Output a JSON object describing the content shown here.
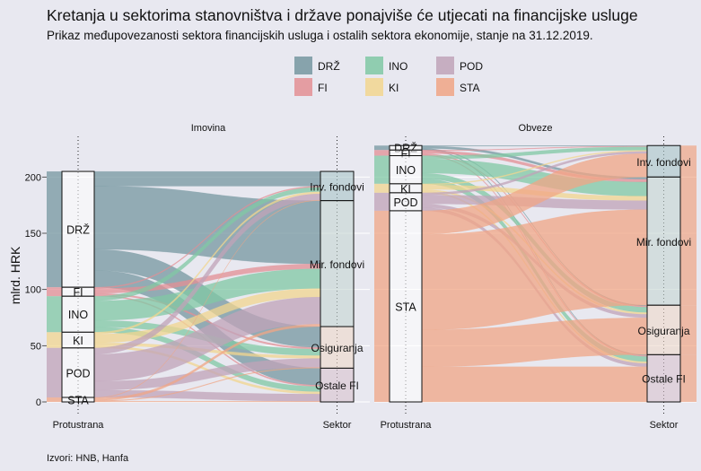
{
  "title": "Kretanja u sektorima stanovništva i države ponajviše će utjecati na financijske usluge",
  "subtitle": "Prikaz međupovezanosti sektora financijskih usluga i ostalih sektora ekonomije, stanje na 31.12.2019.",
  "source": "Izvori: HNB, Hanfa",
  "colors": {
    "DRŽ": "#7597a0",
    "FI": "#e38f94",
    "INO": "#80c8a4",
    "KI": "#f2d68f",
    "POD": "#c0a3b8",
    "STA": "#f0a585"
  },
  "chart_data": {
    "type": "alluvial",
    "ylabel": "mlrd. HRK",
    "ylim": [
      0,
      225
    ],
    "yticks": [
      0,
      50,
      100,
      150,
      200
    ],
    "legend": {
      "position": "top",
      "items": [
        "DRŽ",
        "INO",
        "POD",
        "FI",
        "KI",
        "STA"
      ]
    },
    "axis_labels": [
      "Protustrana",
      "Sektor"
    ],
    "panels": [
      {
        "name": "Imovina",
        "left": [
          {
            "label": "DRŽ",
            "value": 103
          },
          {
            "label": "FI",
            "value": 8
          },
          {
            "label": "INO",
            "value": 32
          },
          {
            "label": "KI",
            "value": 14
          },
          {
            "label": "POD",
            "value": 44
          },
          {
            "label": "STA",
            "value": 4
          }
        ],
        "right": [
          {
            "label": "Inv. fondovi",
            "value": 26
          },
          {
            "label": "Mir. fondovi",
            "value": 112
          },
          {
            "label": "Osiguranja",
            "value": 37
          },
          {
            "label": "Ostale FI",
            "value": 30
          }
        ]
      },
      {
        "name": "Obveze",
        "left": [
          {
            "label": "DRŽ",
            "value": 4
          },
          {
            "label": "FI",
            "value": 5
          },
          {
            "label": "INO",
            "value": 25
          },
          {
            "label": "KI",
            "value": 8
          },
          {
            "label": "POD",
            "value": 16
          },
          {
            "label": "STA",
            "value": 170
          }
        ],
        "right": [
          {
            "label": "Inv. fondovi",
            "value": 28
          },
          {
            "label": "Mir. fondovi",
            "value": 114
          },
          {
            "label": "Osiguranja",
            "value": 44
          },
          {
            "label": "Ostale FI",
            "value": 42
          }
        ]
      }
    ]
  }
}
